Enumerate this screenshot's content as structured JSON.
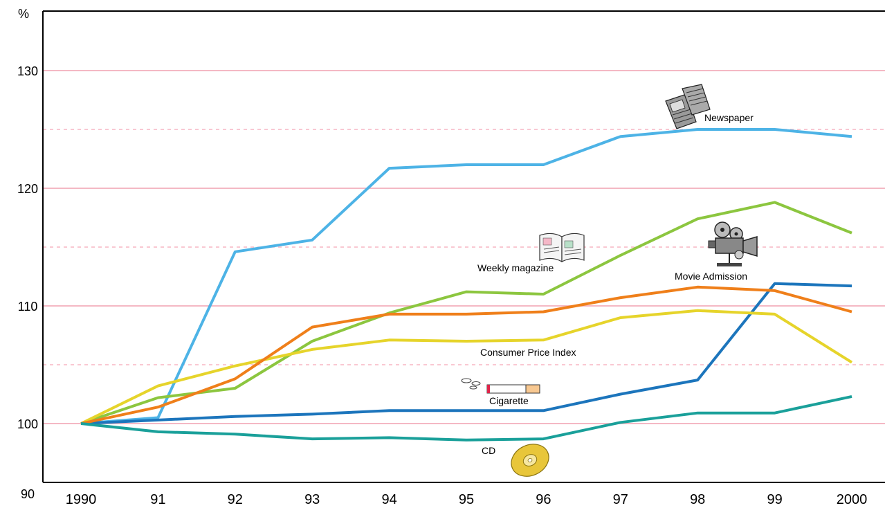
{
  "chart_data": {
    "type": "line",
    "ylabel": "%",
    "ylim": [
      90,
      135
    ],
    "ytick_labels": [
      "90",
      "100",
      "110",
      "120",
      "130"
    ],
    "y_ticks": [
      90,
      100,
      110,
      120,
      130
    ],
    "minor_grid": [
      105,
      115,
      125
    ],
    "categories": [
      "1990",
      "91",
      "92",
      "93",
      "94",
      "95",
      "96",
      "97",
      "98",
      "99",
      "2000"
    ],
    "grid": true,
    "series": [
      {
        "name": "Newspaper",
        "color": "#4db3e6",
        "values": [
          100,
          100.5,
          114.6,
          115.6,
          121.7,
          122,
          122,
          124.4,
          125,
          125,
          124.4
        ]
      },
      {
        "name": "Weekly magazine",
        "color": "#8cc63f",
        "values": [
          100,
          102.2,
          103,
          107,
          109.4,
          111.2,
          111,
          114.3,
          117.4,
          118.8,
          116.2
        ]
      },
      {
        "name": "Movie Admission",
        "color": "#1c75bc",
        "values": [
          100,
          100.3,
          100.6,
          100.8,
          101.1,
          101.1,
          101.1,
          102.5,
          103.7,
          111.9,
          111.7
        ]
      },
      {
        "name": "Consumer Price Index",
        "color": "#e6d42b",
        "values": [
          100,
          103.2,
          104.9,
          106.3,
          107.1,
          107,
          107.1,
          109,
          109.6,
          109.3,
          105.2
        ]
      },
      {
        "name": "Cigarette",
        "color": "#ef7f1a",
        "values": [
          100,
          101.4,
          103.8,
          108.2,
          109.3,
          109.3,
          109.5,
          110.7,
          111.6,
          111.3,
          109.5
        ]
      },
      {
        "name": "CD",
        "color": "#1aa09a",
        "values": [
          100,
          99.3,
          99.1,
          98.7,
          98.8,
          98.6,
          98.7,
          100.1,
          100.9,
          100.9,
          102.3
        ]
      }
    ],
    "annotations": {
      "newspaper": "Newspaper",
      "weekly_magazine": "Weekly magazine",
      "movie_admission": "Movie Admission",
      "cpi": "Consumer Price Index",
      "cigarette": "Cigarette",
      "cd": "CD"
    },
    "icons": [
      "newspaper-icon",
      "magazine-icon",
      "movie-camera-icon",
      "cigarette-icon",
      "cd-icon"
    ]
  }
}
